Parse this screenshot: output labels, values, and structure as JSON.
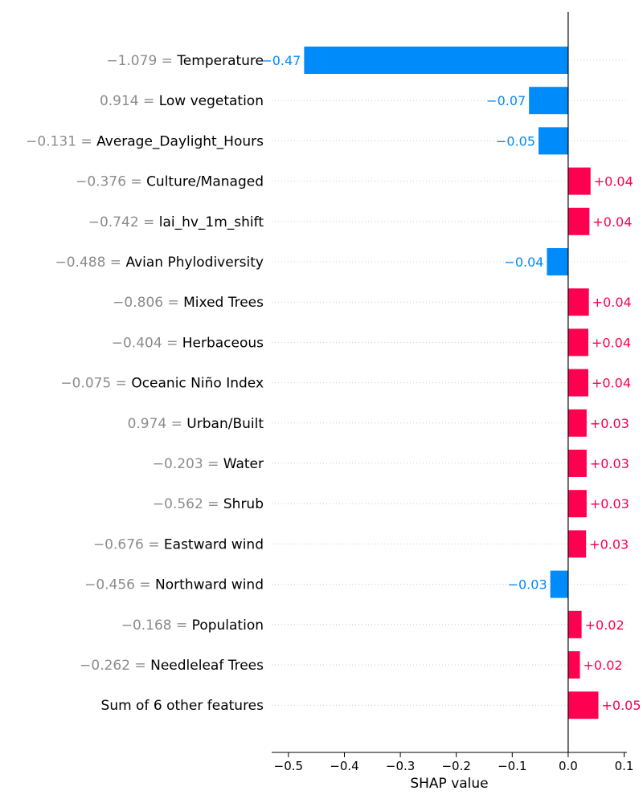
{
  "chart_data": {
    "type": "bar",
    "orientation": "horizontal",
    "xlabel": "SHAP value",
    "xlim": [
      -0.53,
      0.105
    ],
    "xticks": [
      -0.5,
      -0.4,
      -0.3,
      -0.2,
      -0.1,
      0.0,
      0.1
    ],
    "xtick_labels": [
      "−0.5",
      "−0.4",
      "−0.3",
      "−0.2",
      "−0.1",
      "0.0",
      "0.1"
    ],
    "grid": false,
    "colors": {
      "positive": "#ff0051",
      "negative": "#008bfb",
      "value_text": "#8c8c8c"
    },
    "features": [
      {
        "value_text": "−1.079 =",
        "name": "Temperature",
        "shap": -0.472,
        "label": "−0.47"
      },
      {
        "value_text": "0.914 =",
        "name": "Low vegetation",
        "shap": -0.07,
        "label": "−0.07"
      },
      {
        "value_text": "−0.131 =",
        "name": "Average_Daylight_Hours",
        "shap": -0.053,
        "label": "−0.05"
      },
      {
        "value_text": "−0.376 =",
        "name": "Culture/Managed",
        "shap": 0.04,
        "label": "+0.04"
      },
      {
        "value_text": "−0.742 =",
        "name": "lai_hv_1m_shift",
        "shap": 0.038,
        "label": "+0.04"
      },
      {
        "value_text": "−0.488 =",
        "name": "Avian Phylodiversity",
        "shap": -0.038,
        "label": "−0.04"
      },
      {
        "value_text": "−0.806 =",
        "name": "Mixed Trees",
        "shap": 0.037,
        "label": "+0.04"
      },
      {
        "value_text": "−0.404 =",
        "name": "Herbaceous",
        "shap": 0.036,
        "label": "+0.04"
      },
      {
        "value_text": "−0.075 =",
        "name": "Oceanic Niño Index",
        "shap": 0.036,
        "label": "+0.04"
      },
      {
        "value_text": "0.974 =",
        "name": "Urban/Built",
        "shap": 0.033,
        "label": "+0.03"
      },
      {
        "value_text": "−0.203 =",
        "name": "Water",
        "shap": 0.033,
        "label": "+0.03"
      },
      {
        "value_text": "−0.562 =",
        "name": "Shrub",
        "shap": 0.033,
        "label": "+0.03"
      },
      {
        "value_text": "−0.676 =",
        "name": "Eastward wind",
        "shap": 0.032,
        "label": "+0.03"
      },
      {
        "value_text": "−0.456 =",
        "name": "Northward wind",
        "shap": -0.032,
        "label": "−0.03"
      },
      {
        "value_text": "−0.168 =",
        "name": "Population",
        "shap": 0.024,
        "label": "+0.02"
      },
      {
        "value_text": "−0.262 =",
        "name": "Needleleaf Trees",
        "shap": 0.021,
        "label": "+0.02"
      },
      {
        "value_text": "",
        "name": "Sum of 6 other features",
        "shap": 0.054,
        "label": "+0.05"
      }
    ]
  }
}
